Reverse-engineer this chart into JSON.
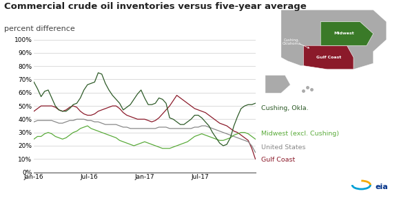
{
  "title": "Commercial crude oil inventories versus five-year average",
  "subtitle": "percent difference",
  "title_fontsize": 9.5,
  "subtitle_fontsize": 8,
  "bg_color": "#ffffff",
  "grid_color": "#cccccc",
  "colors": {
    "cushing": "#2d5a27",
    "midwest": "#5aab3a",
    "us": "#888888",
    "gulf": "#8b1a2a"
  },
  "series_labels": {
    "cushing": "Cushing, Okla.",
    "midwest": "Midwest (excl. Cushing)",
    "us": "United States",
    "gulf": "Gulf Coast"
  },
  "xtick_labels": [
    "Jan-16",
    "Jul-16",
    "Jan-17",
    "Jul-17"
  ],
  "cushing": [
    68,
    63,
    57,
    61,
    62,
    56,
    50,
    47,
    46,
    46,
    48,
    51,
    52,
    56,
    62,
    66,
    67,
    68,
    75,
    74,
    67,
    62,
    58,
    55,
    52,
    47,
    49,
    51,
    55,
    59,
    62,
    56,
    51,
    51,
    52,
    56,
    55,
    52,
    41,
    40,
    38,
    36,
    36,
    38,
    40,
    43,
    43,
    41,
    38,
    35,
    30,
    26,
    22,
    20,
    21,
    26,
    35,
    42,
    48,
    50,
    51,
    51,
    52
  ],
  "midwest": [
    25,
    27,
    27,
    29,
    30,
    29,
    27,
    26,
    25,
    26,
    28,
    30,
    31,
    33,
    34,
    35,
    33,
    32,
    31,
    30,
    29,
    28,
    27,
    26,
    24,
    23,
    22,
    21,
    20,
    21,
    22,
    23,
    22,
    21,
    20,
    19,
    18,
    18,
    18,
    19,
    20,
    21,
    22,
    23,
    25,
    27,
    28,
    29,
    28,
    27,
    26,
    25,
    24,
    24,
    25,
    26,
    28,
    29,
    30,
    30,
    29,
    27,
    25
  ],
  "us": [
    38,
    39,
    39,
    39,
    39,
    39,
    38,
    37,
    37,
    38,
    39,
    39,
    40,
    40,
    40,
    39,
    39,
    38,
    38,
    37,
    36,
    36,
    36,
    36,
    35,
    34,
    34,
    33,
    33,
    33,
    33,
    33,
    33,
    33,
    33,
    34,
    34,
    34,
    33,
    33,
    33,
    33,
    33,
    33,
    33,
    34,
    34,
    35,
    35,
    34,
    33,
    32,
    31,
    30,
    29,
    28,
    27,
    26,
    25,
    24,
    23,
    20,
    15
  ],
  "gulf": [
    46,
    48,
    50,
    50,
    50,
    50,
    49,
    47,
    46,
    47,
    49,
    50,
    49,
    46,
    44,
    43,
    43,
    44,
    46,
    47,
    48,
    49,
    50,
    50,
    48,
    45,
    43,
    42,
    41,
    40,
    40,
    40,
    39,
    38,
    39,
    41,
    44,
    47,
    50,
    54,
    58,
    56,
    54,
    52,
    50,
    48,
    47,
    46,
    45,
    43,
    41,
    39,
    37,
    36,
    35,
    33,
    31,
    30,
    28,
    26,
    24,
    18,
    10
  ]
}
